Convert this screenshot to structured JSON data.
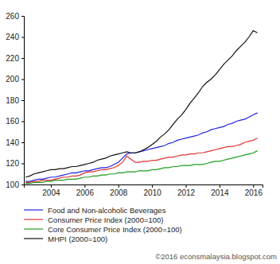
{
  "chart_data": {
    "type": "line",
    "x": [
      2002.5,
      2002.75,
      2003,
      2003.25,
      2003.5,
      2003.75,
      2004,
      2004.25,
      2004.5,
      2004.75,
      2005,
      2005.25,
      2005.5,
      2005.75,
      2006,
      2006.25,
      2006.5,
      2006.75,
      2007,
      2007.25,
      2007.5,
      2007.75,
      2008,
      2008.25,
      2008.5,
      2008.75,
      2009,
      2009.25,
      2009.5,
      2009.75,
      2010,
      2010.25,
      2010.5,
      2010.75,
      2011,
      2011.25,
      2011.5,
      2011.75,
      2012,
      2012.25,
      2012.5,
      2012.75,
      2013,
      2013.25,
      2013.5,
      2013.75,
      2014,
      2014.25,
      2014.5,
      2014.75,
      2015,
      2015.25,
      2015.5,
      2015.75,
      2016,
      2016.25
    ],
    "series": [
      {
        "name": "Food and Non-alcoholic Beverages",
        "color": "#2323e0",
        "values": [
          103,
          103,
          104,
          105,
          105,
          106,
          107,
          107,
          108,
          109,
          110,
          111,
          111,
          112,
          113,
          113,
          114,
          115,
          116,
          116,
          117,
          119,
          121,
          125,
          129,
          130,
          130,
          131,
          132,
          133,
          134,
          135,
          136,
          137,
          139,
          140,
          142,
          143,
          144,
          145,
          146,
          147,
          149,
          150,
          152,
          153,
          154,
          155,
          157,
          158,
          160,
          161,
          162,
          164,
          166,
          168
        ]
      },
      {
        "name": "Consumer Price Index (2000=100)",
        "color": "#e33434",
        "values": [
          102,
          102,
          103,
          103,
          104,
          104,
          104,
          105,
          106,
          107,
          107,
          108,
          108,
          109,
          111,
          112,
          112,
          113,
          114,
          114,
          115,
          116,
          118,
          121,
          127,
          124,
          121,
          121,
          122,
          122,
          123,
          123,
          124,
          125,
          126,
          126,
          127,
          128,
          128,
          129,
          129,
          130,
          130,
          131,
          132,
          133,
          134,
          135,
          136,
          136,
          137,
          138,
          140,
          141,
          142,
          144
        ]
      },
      {
        "name": "Core Consumer Price Index (2000=100)",
        "color": "#1f9e1f",
        "values": [
          101,
          101,
          102,
          102,
          102,
          103,
          103,
          104,
          104,
          104,
          105,
          105,
          105,
          106,
          107,
          107,
          108,
          108,
          109,
          109,
          110,
          110,
          111,
          111,
          112,
          112,
          112,
          113,
          113,
          113,
          114,
          114,
          115,
          116,
          116,
          117,
          117,
          118,
          118,
          118,
          119,
          119,
          119,
          120,
          121,
          122,
          122,
          123,
          124,
          125,
          126,
          127,
          128,
          129,
          130,
          132
        ]
      },
      {
        "name": "MHPI (2000=100)",
        "color": "#111111",
        "values": [
          107,
          108,
          110,
          111,
          112,
          113,
          114,
          114,
          115,
          115,
          116,
          117,
          117,
          118,
          119,
          120,
          121,
          123,
          124,
          125,
          127,
          128,
          129,
          130,
          131,
          130,
          130,
          131,
          133,
          135,
          138,
          141,
          145,
          148,
          152,
          157,
          162,
          166,
          171,
          177,
          182,
          187,
          193,
          197,
          200,
          204,
          209,
          214,
          218,
          222,
          227,
          231,
          235,
          240,
          246,
          244
        ]
      }
    ],
    "xlim": [
      2002.4,
      2016.55
    ],
    "xticks": [
      2004,
      2006,
      2008,
      2010,
      2012,
      2014,
      2016
    ],
    "ylim": [
      100,
      260
    ],
    "yticks": [
      100,
      120,
      140,
      160,
      180,
      200,
      220,
      240,
      260
    ],
    "grid": false,
    "legend": "bottom",
    "annotation": "©2016 econsmalaysia.blogspot.com"
  }
}
